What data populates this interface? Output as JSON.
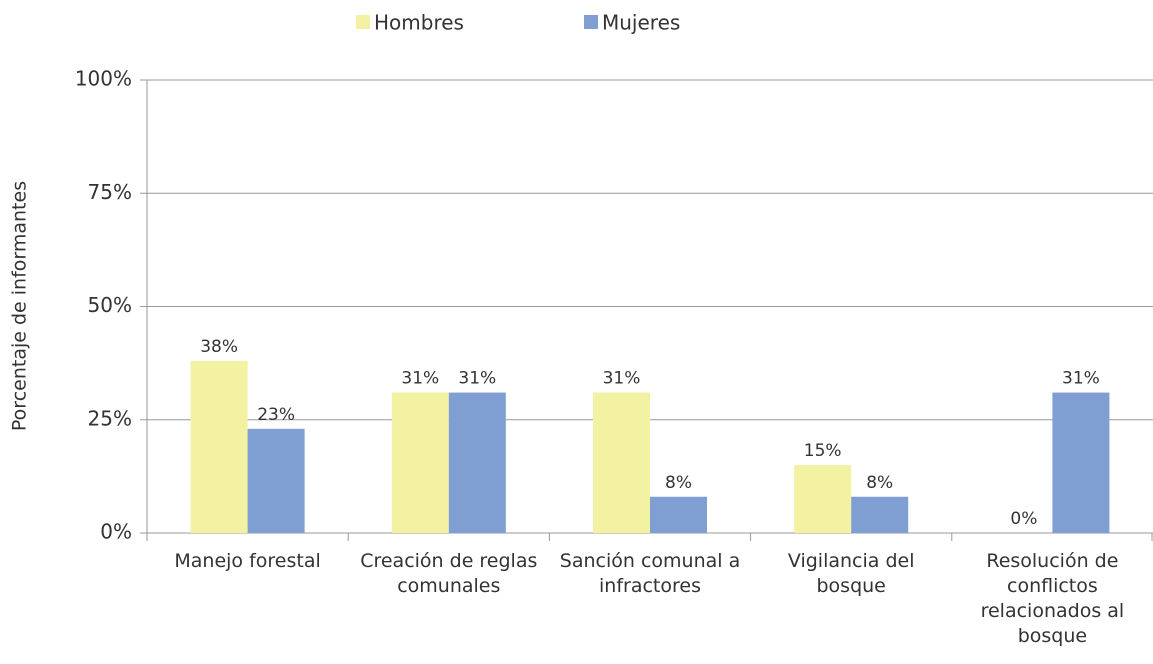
{
  "chart_data": {
    "type": "bar",
    "y_label": "Porcentaje de informantes",
    "categories": [
      "Manejo forestal",
      "Creación de reglas comunales",
      "Sanción comunal a infractores",
      "Vigilancia del bosque",
      "Resolución de conflictos relacionados al bosque"
    ],
    "series": [
      {
        "name": "Hombres",
        "color": "#f3f1a2",
        "values": [
          38,
          31,
          31,
          15,
          0
        ],
        "value_labels": [
          "38%",
          "31%",
          "31%",
          "15%",
          "0%"
        ]
      },
      {
        "name": "Mujeres",
        "color": "#7f9fd2",
        "values": [
          23,
          31,
          8,
          8,
          31
        ],
        "value_labels": [
          "23%",
          "31%",
          "8%",
          "8%",
          "31%"
        ]
      }
    ],
    "ylim": [
      0,
      100
    ],
    "yticks": [
      {
        "value": 0,
        "label": "0%"
      },
      {
        "value": 25,
        "label": "25%"
      },
      {
        "value": 50,
        "label": "50%"
      },
      {
        "value": 75,
        "label": "75%"
      },
      {
        "value": 100,
        "label": "100%"
      }
    ],
    "grid": true,
    "legend": "top"
  }
}
